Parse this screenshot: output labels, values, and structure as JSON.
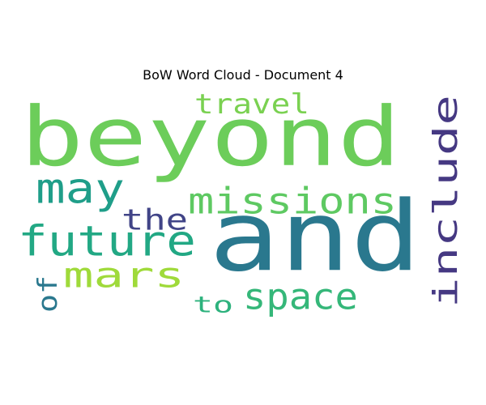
{
  "chart_data": {
    "type": "wordcloud",
    "title": "BoW Word Cloud - Document 4",
    "words": [
      {
        "text": "beyond",
        "weight": 1.0,
        "color": "#6ccd5a",
        "orientation": "horizontal"
      },
      {
        "text": "and",
        "weight": 1.0,
        "color": "#2a788e",
        "orientation": "horizontal"
      },
      {
        "text": "include",
        "weight": 0.5,
        "color": "#453882",
        "orientation": "vertical"
      },
      {
        "text": "future",
        "weight": 0.5,
        "color": "#22a884",
        "orientation": "horizontal"
      },
      {
        "text": "missions",
        "weight": 0.45,
        "color": "#5ec962",
        "orientation": "horizontal"
      },
      {
        "text": "may",
        "weight": 0.45,
        "color": "#1f9e89",
        "orientation": "horizontal"
      },
      {
        "text": "mars",
        "weight": 0.45,
        "color": "#9fda3a",
        "orientation": "horizontal"
      },
      {
        "text": "space",
        "weight": 0.45,
        "color": "#35b779",
        "orientation": "horizontal"
      },
      {
        "text": "travel",
        "weight": 0.4,
        "color": "#7ad151",
        "orientation": "horizontal"
      },
      {
        "text": "the",
        "weight": 0.35,
        "color": "#414487",
        "orientation": "horizontal"
      },
      {
        "text": "to",
        "weight": 0.3,
        "color": "#2db27d",
        "orientation": "horizontal"
      },
      {
        "text": "of",
        "weight": 0.3,
        "color": "#2a788e",
        "orientation": "vertical"
      }
    ]
  }
}
